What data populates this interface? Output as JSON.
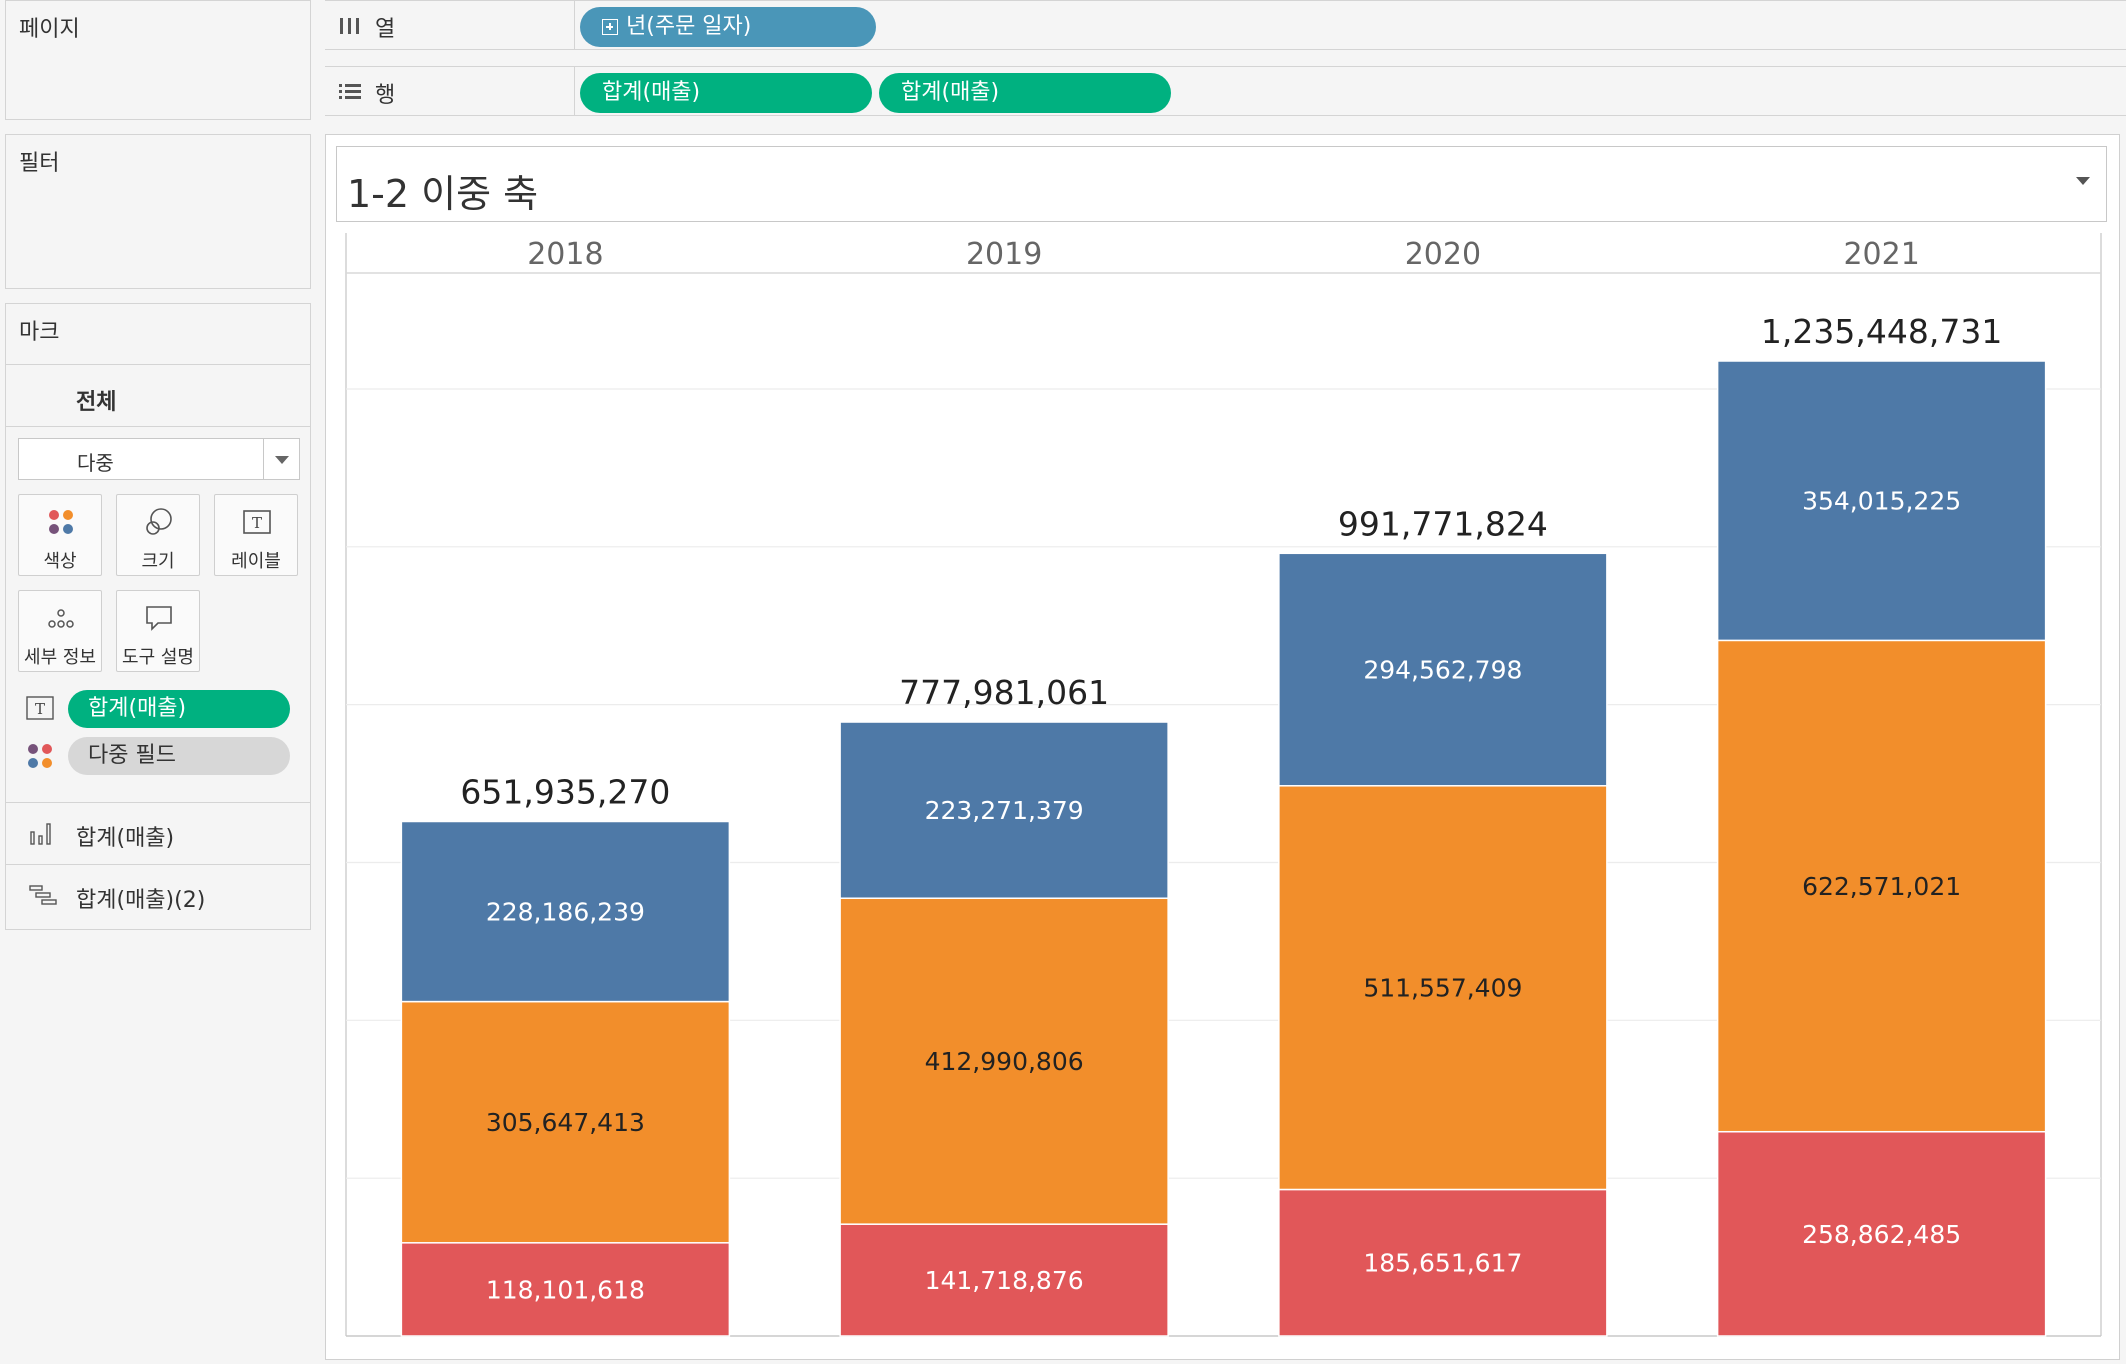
{
  "left": {
    "pages_title": "페이지",
    "filters_title": "필터",
    "marks_title": "마크",
    "marks_all": "전체",
    "mark_type": "다중",
    "buttons": {
      "color": "색상",
      "size": "크기",
      "label": "레이블",
      "detail": "세부 정보",
      "tooltip": "도구 설명"
    },
    "pills": {
      "label_pill": "합계(매출)",
      "color_pill": "다중 필드"
    },
    "axis_rows": {
      "first": "합계(매출)",
      "second": "합계(매출)(2)"
    }
  },
  "shelves": {
    "columns_label": "열",
    "rows_label": "행",
    "columns_pill": "년(주문 일자)",
    "rows_pill_1": "합계(매출)",
    "rows_pill_2": "합계(매출)"
  },
  "chart_title": "1-2 이중 축",
  "colors": {
    "blue": "#4e79a7",
    "orange": "#f28e2b",
    "red": "#e15759"
  },
  "chart_data": {
    "type": "bar",
    "stacked": true,
    "categories": [
      "2018",
      "2019",
      "2020",
      "2021"
    ],
    "series": [
      {
        "values": [
          118101618,
          141718876,
          185651617,
          258862485
        ],
        "color": "#e15759"
      },
      {
        "values": [
          305647413,
          412990806,
          511557409,
          622571021
        ],
        "color": "#f28e2b"
      },
      {
        "values": [
          228186239,
          223271379,
          294562798,
          354015225
        ],
        "color": "#4e79a7"
      }
    ],
    "series_labels": [
      [
        "118,101,618",
        "141,718,876",
        "185,651,617",
        "258,862,485"
      ],
      [
        "305,647,413",
        "412,990,806",
        "511,557,409",
        "622,571,021"
      ],
      [
        "228,186,239",
        "223,271,379",
        "294,562,798",
        "354,015,225"
      ]
    ],
    "totals": [
      651935270,
      777981061,
      991771824,
      1235448731
    ],
    "total_labels": [
      "651,935,270",
      "777,981,061",
      "991,771,824",
      "1,235,448,731"
    ],
    "ylim": [
      0,
      1400000000
    ],
    "grid": true
  }
}
